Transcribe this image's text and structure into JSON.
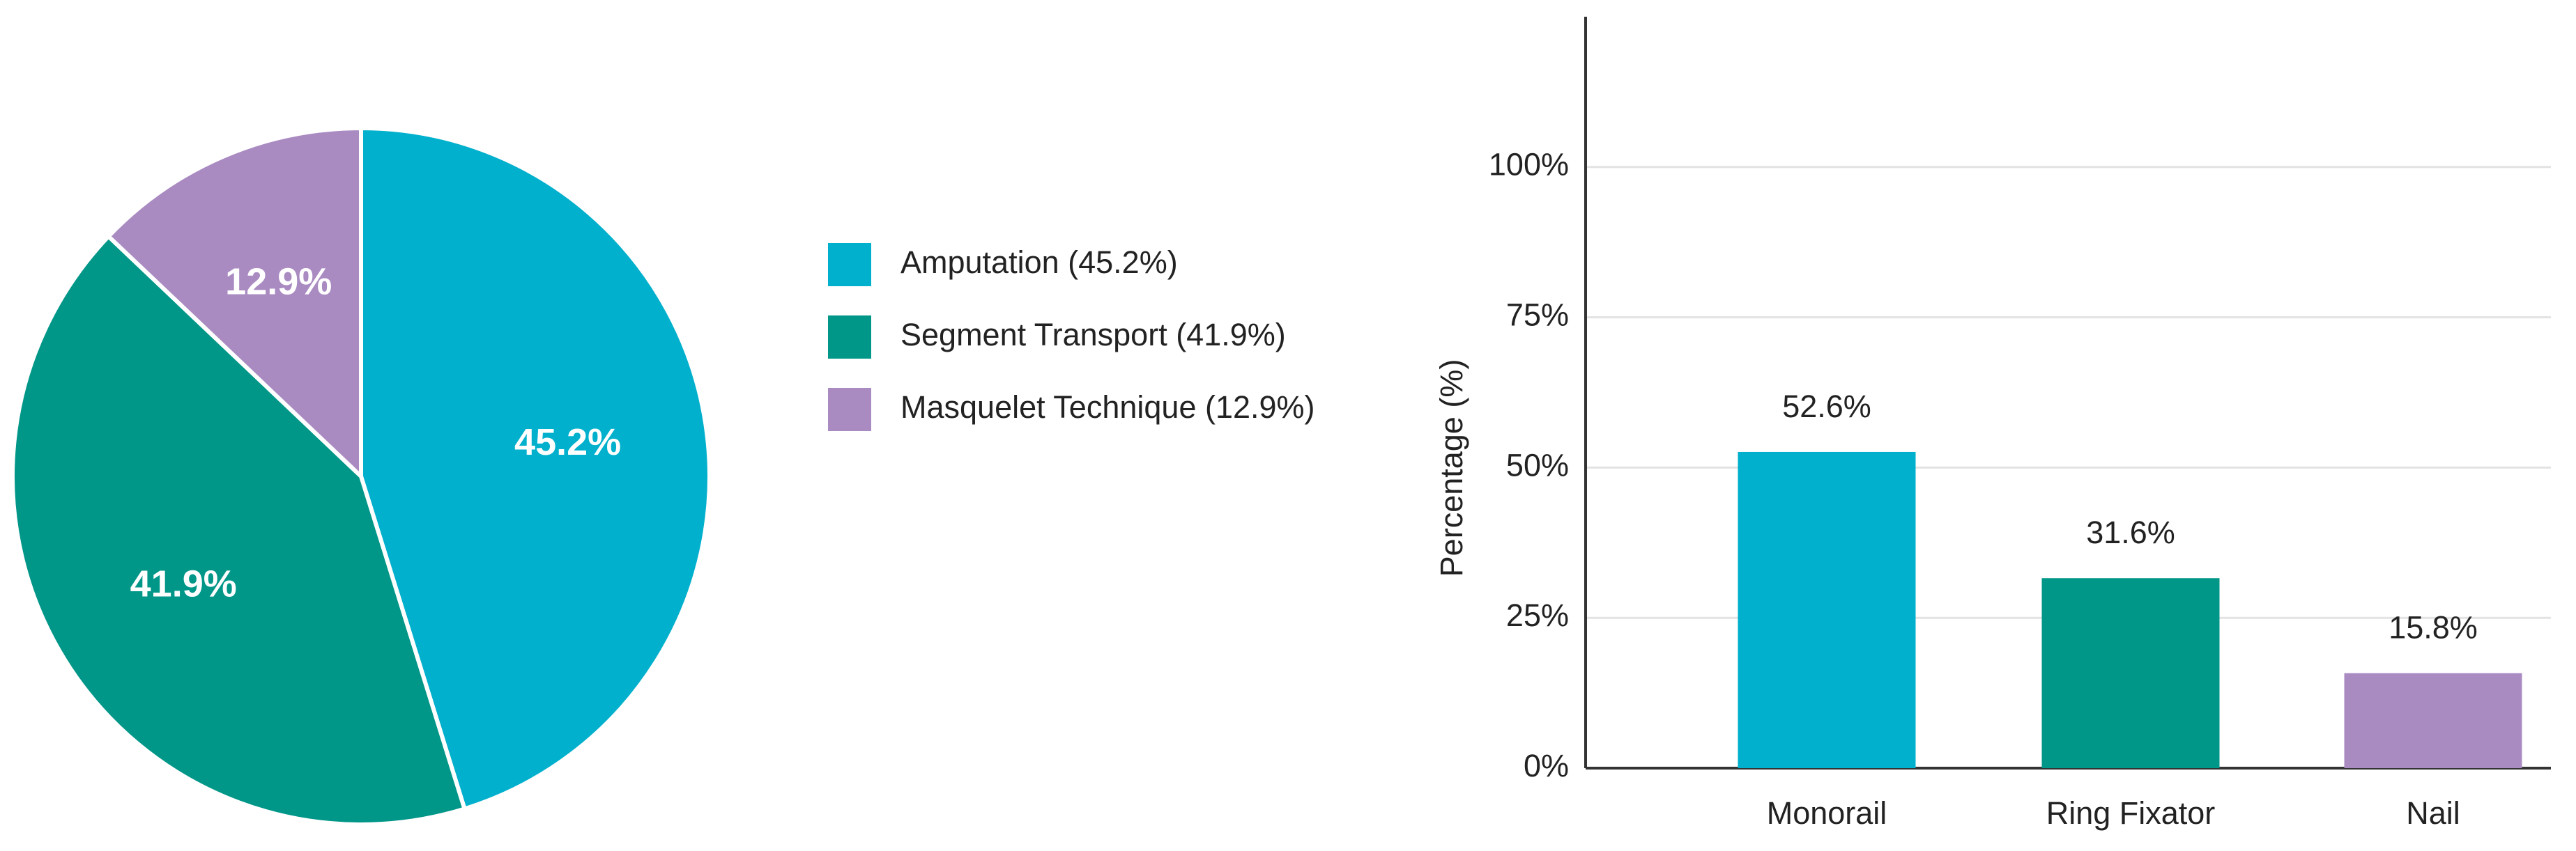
{
  "chart_data": [
    {
      "type": "pie",
      "categories": [
        "Amputation (45.2%)",
        "Segment Transport (41.9%)",
        "Masquelet Technique (12.9%)"
      ],
      "values": [
        45.2,
        41.9,
        12.9
      ],
      "value_labels": [
        "45.2%",
        "41.9%",
        "12.9%"
      ],
      "colors": [
        "#00b0cc",
        "#009688",
        "#a98bc2"
      ],
      "legend": "right"
    },
    {
      "type": "bar",
      "ylabel": "Percentage (%)",
      "categories": [
        "Monorail",
        "Ring Fixator",
        "Nail"
      ],
      "values": [
        52.6,
        31.6,
        15.8
      ],
      "value_labels": [
        "52.6%",
        "31.6%",
        "15.8%"
      ],
      "colors": [
        "#00b0cc",
        "#009688",
        "#a98bc2"
      ],
      "ylim": [
        0,
        125
      ],
      "yticks": [
        {
          "value": 0,
          "label": "0%"
        },
        {
          "value": 25,
          "label": "25%"
        },
        {
          "value": 50,
          "label": "50%"
        },
        {
          "value": 75,
          "label": "75%"
        },
        {
          "value": 100,
          "label": "100%"
        }
      ],
      "grid": true
    }
  ]
}
